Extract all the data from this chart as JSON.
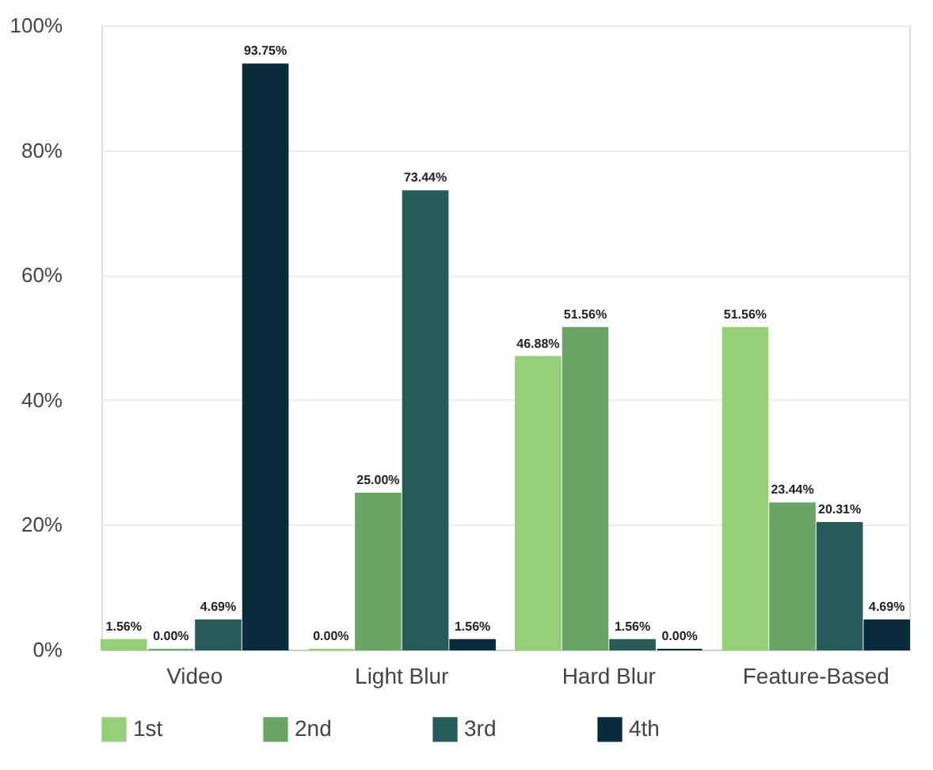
{
  "chart_data": {
    "type": "bar",
    "categories": [
      "Video",
      "Light Blur",
      "Hard Blur",
      "Feature-Based"
    ],
    "series": [
      {
        "name": "1st",
        "color": "#96cf78",
        "values": [
          1.56,
          0.0,
          46.88,
          51.56
        ],
        "value_labels": [
          "1.56%",
          "0.00%",
          "46.88%",
          "51.56%"
        ]
      },
      {
        "name": "2nd",
        "color": "#6aa567",
        "values": [
          0.0,
          25.0,
          51.56,
          23.44
        ],
        "value_labels": [
          "0.00%",
          "25.00%",
          "51.56%",
          "23.44%"
        ]
      },
      {
        "name": "3rd",
        "color": "#275b58",
        "values": [
          4.69,
          73.44,
          1.56,
          20.31
        ],
        "value_labels": [
          "4.69%",
          "73.44%",
          "1.56%",
          "20.31%"
        ]
      },
      {
        "name": "4th",
        "color": "#0a2b3c",
        "values": [
          93.75,
          1.56,
          0.0,
          4.69
        ],
        "value_labels": [
          "93.75%",
          "1.56%",
          "0.00%",
          "4.69%"
        ]
      }
    ],
    "ylim": [
      0,
      100
    ],
    "yticks": [
      {
        "value": 0,
        "label": "0%"
      },
      {
        "value": 20,
        "label": "20%"
      },
      {
        "value": 40,
        "label": "40%"
      },
      {
        "value": 60,
        "label": "60%"
      },
      {
        "value": 80,
        "label": "80%"
      },
      {
        "value": 100,
        "label": "100%"
      }
    ],
    "grid": "y",
    "legend": "bottom"
  }
}
